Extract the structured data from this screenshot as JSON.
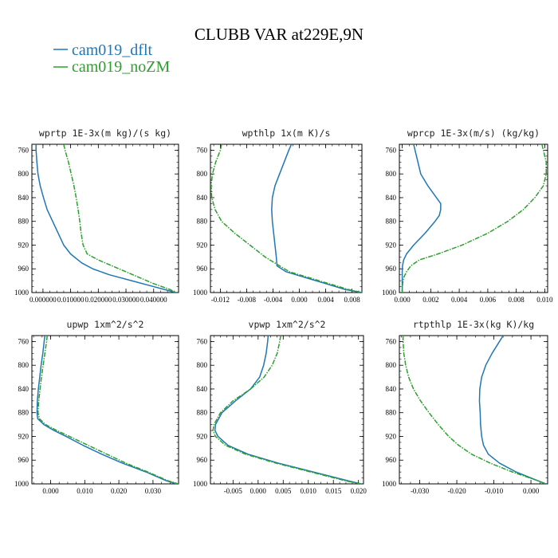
{
  "figure": {
    "title": "CLUBB VAR at229E,9N",
    "legend": [
      {
        "name": "cam019_dflt",
        "color": "#1f77b4"
      },
      {
        "name": "cam019_noZM",
        "color": "#2ca02c"
      }
    ]
  },
  "chart_data": [
    {
      "type": "line",
      "title": "wprtp  1E-3x(m kg)/(s kg)",
      "xlim": [
        -0.004,
        0.049
      ],
      "ylim": [
        1000,
        750
      ],
      "y_axis": "pressure_reversed",
      "xticks": [
        "0.000000",
        "0.010000",
        "0.020000",
        "0.030000",
        "0.040000"
      ],
      "xtick_values": [
        0,
        0.01,
        0.02,
        0.03,
        0.04
      ],
      "yticks": [
        760,
        800,
        840,
        880,
        920,
        960,
        1000
      ],
      "series": [
        {
          "name": "cam019_dflt",
          "color": "#1f77b4",
          "y": [
            750,
            760,
            780,
            800,
            820,
            840,
            860,
            880,
            900,
            920,
            935,
            950,
            960,
            970,
            980,
            990,
            995,
            1000
          ],
          "x": [
            -0.0025,
            -0.0025,
            -0.0022,
            -0.0018,
            -0.001,
            0.0002,
            0.0015,
            0.0035,
            0.0055,
            0.0075,
            0.01,
            0.014,
            0.018,
            0.024,
            0.032,
            0.04,
            0.044,
            0.048
          ]
        },
        {
          "name": "cam019_noZM",
          "color": "#2ca02c",
          "y": [
            750,
            760,
            780,
            800,
            820,
            840,
            860,
            880,
            900,
            920,
            935,
            945,
            955,
            965,
            975,
            985,
            990,
            995,
            1000
          ],
          "x": [
            0.0075,
            0.008,
            0.0092,
            0.0102,
            0.0112,
            0.012,
            0.0127,
            0.0133,
            0.0138,
            0.0145,
            0.016,
            0.02,
            0.025,
            0.03,
            0.035,
            0.04,
            0.043,
            0.046,
            0.048
          ]
        }
      ]
    },
    {
      "type": "line",
      "title": "wpthlp  1x(m K)/s",
      "xlim": [
        -0.0135,
        0.0095
      ],
      "ylim": [
        1000,
        750
      ],
      "y_axis": "pressure_reversed",
      "xticks": [
        "-0.012",
        "-0.008",
        "-0.004",
        "0.000",
        "0.004",
        "0.008"
      ],
      "xtick_values": [
        -0.012,
        -0.008,
        -0.004,
        0,
        0.004,
        0.008
      ],
      "yticks": [
        760,
        800,
        840,
        880,
        920,
        960,
        1000
      ],
      "series": [
        {
          "name": "cam019_dflt",
          "color": "#1f77b4",
          "y": [
            750,
            760,
            780,
            800,
            820,
            840,
            860,
            880,
            900,
            920,
            940,
            955,
            965,
            975,
            985,
            995,
            1000
          ],
          "x": [
            -0.0012,
            -0.0016,
            -0.0023,
            -0.003,
            -0.0037,
            -0.0041,
            -0.0042,
            -0.0041,
            -0.0039,
            -0.0037,
            -0.0035,
            -0.0034,
            -0.002,
            0.001,
            0.004,
            0.007,
            0.0095
          ]
        },
        {
          "name": "cam019_noZM",
          "color": "#2ca02c",
          "y": [
            750,
            760,
            780,
            800,
            820,
            840,
            860,
            880,
            900,
            920,
            940,
            955,
            965,
            975,
            985,
            995,
            1000
          ],
          "x": [
            -0.0118,
            -0.012,
            -0.0127,
            -0.0132,
            -0.0134,
            -0.0133,
            -0.0128,
            -0.0118,
            -0.0098,
            -0.0075,
            -0.0052,
            -0.003,
            -0.0015,
            0.0015,
            0.0045,
            0.0075,
            0.0095
          ]
        }
      ]
    },
    {
      "type": "line",
      "title": "wprcp  1E-3x(m/s) (kg/kg)",
      "xlim": [
        -0.0002,
        0.0102
      ],
      "ylim": [
        1000,
        750
      ],
      "y_axis": "pressure_reversed",
      "xticks": [
        "0.000",
        "0.002",
        "0.004",
        "0.006",
        "0.008",
        "0.010"
      ],
      "xtick_values": [
        0,
        0.002,
        0.004,
        0.006,
        0.008,
        0.01
      ],
      "yticks": [
        760,
        800,
        840,
        880,
        920,
        960,
        1000
      ],
      "series": [
        {
          "name": "cam019_dflt",
          "color": "#1f77b4",
          "y": [
            750,
            760,
            780,
            800,
            820,
            840,
            850,
            860,
            870,
            880,
            900,
            920,
            935,
            945,
            955,
            965,
            975,
            990,
            1000
          ],
          "x": [
            0.0008,
            0.0009,
            0.0011,
            0.0013,
            0.0018,
            0.0024,
            0.0027,
            0.0027,
            0.0026,
            0.0023,
            0.0016,
            0.0008,
            0.0003,
            0.0001,
            2e-05,
            0,
            0,
            0,
            0
          ]
        },
        {
          "name": "cam019_noZM",
          "color": "#2ca02c",
          "y": [
            750,
            760,
            780,
            800,
            820,
            840,
            860,
            880,
            900,
            920,
            935,
            945,
            955,
            965,
            975,
            985,
            995,
            1000
          ],
          "x": [
            0.0098,
            0.0099,
            0.0101,
            0.0101,
            0.0099,
            0.0093,
            0.0085,
            0.0074,
            0.006,
            0.0042,
            0.0025,
            0.0012,
            0.0006,
            0.0003,
            0.0001,
            3e-05,
            0,
            0
          ]
        }
      ]
    },
    {
      "type": "line",
      "title": "upwp  1xm^2/s^2",
      "xlim": [
        -0.0055,
        0.0375
      ],
      "ylim": [
        1000,
        750
      ],
      "y_axis": "pressure_reversed",
      "xticks": [
        "0.000",
        "0.010",
        "0.020",
        "0.030"
      ],
      "xtick_values": [
        0,
        0.01,
        0.02,
        0.03
      ],
      "yticks": [
        760,
        800,
        840,
        880,
        920,
        960,
        1000
      ],
      "series": [
        {
          "name": "cam019_dflt",
          "color": "#1f77b4",
          "y": [
            750,
            760,
            780,
            800,
            820,
            840,
            860,
            880,
            890,
            900,
            910,
            920,
            935,
            950,
            965,
            980,
            995,
            1000
          ],
          "x": [
            -0.0017,
            -0.0019,
            -0.0023,
            -0.0028,
            -0.0032,
            -0.0036,
            -0.0039,
            -0.004,
            -0.0038,
            -0.002,
            0.001,
            0.0045,
            0.0095,
            0.015,
            0.021,
            0.028,
            0.034,
            0.037
          ]
        },
        {
          "name": "cam019_noZM",
          "color": "#2ca02c",
          "y": [
            750,
            760,
            780,
            800,
            820,
            840,
            860,
            880,
            890,
            900,
            910,
            920,
            935,
            950,
            965,
            980,
            995,
            1000
          ],
          "x": [
            -0.001,
            -0.0012,
            -0.0017,
            -0.0022,
            -0.0027,
            -0.0031,
            -0.0035,
            -0.0037,
            -0.0033,
            -0.0015,
            0.0018,
            0.0055,
            0.011,
            0.0165,
            0.022,
            0.0285,
            0.0345,
            0.0375
          ]
        }
      ]
    },
    {
      "type": "line",
      "title": "vpwp  1xm^2/s^2",
      "xlim": [
        -0.0095,
        0.021
      ],
      "ylim": [
        1000,
        750
      ],
      "y_axis": "pressure_reversed",
      "xticks": [
        "-0.005",
        "0.000",
        "0.005",
        "0.010",
        "0.015",
        "0.020"
      ],
      "xtick_values": [
        -0.005,
        0,
        0.005,
        0.01,
        0.015,
        0.02
      ],
      "yticks": [
        760,
        800,
        840,
        880,
        920,
        960,
        1000
      ],
      "series": [
        {
          "name": "cam019_dflt",
          "color": "#1f77b4",
          "y": [
            750,
            760,
            780,
            800,
            820,
            840,
            860,
            880,
            900,
            910,
            920,
            935,
            950,
            965,
            980,
            995,
            1000
          ],
          "x": [
            0.002,
            0.0019,
            0.0016,
            0.0011,
            0.0003,
            -0.0015,
            -0.0045,
            -0.0072,
            -0.0085,
            -0.0086,
            -0.008,
            -0.006,
            -0.002,
            0.004,
            0.011,
            0.018,
            0.0205
          ]
        },
        {
          "name": "cam019_noZM",
          "color": "#2ca02c",
          "y": [
            750,
            760,
            780,
            800,
            820,
            840,
            860,
            880,
            900,
            910,
            920,
            935,
            950,
            965,
            980,
            995,
            1000
          ],
          "x": [
            0.0045,
            0.0043,
            0.0038,
            0.0028,
            0.0012,
            -0.0015,
            -0.005,
            -0.0075,
            -0.0088,
            -0.009,
            -0.0085,
            -0.0065,
            -0.0025,
            0.0035,
            0.0105,
            0.0175,
            0.0205
          ]
        }
      ]
    },
    {
      "type": "line",
      "title": "rtpthlp  1E-3x(kg K)/kg",
      "xlim": [
        -0.0355,
        0.0045
      ],
      "ylim": [
        1000,
        750
      ],
      "y_axis": "pressure_reversed",
      "xticks": [
        "-0.030",
        "-0.020",
        "-0.010",
        "0.000"
      ],
      "xtick_values": [
        -0.03,
        -0.02,
        -0.01,
        0
      ],
      "yticks": [
        760,
        800,
        840,
        880,
        920,
        960,
        1000
      ],
      "series": [
        {
          "name": "cam019_dflt",
          "color": "#1f77b4",
          "y": [
            750,
            760,
            780,
            800,
            820,
            840,
            860,
            880,
            900,
            920,
            935,
            950,
            965,
            980,
            995,
            1000
          ],
          "x": [
            -0.0075,
            -0.0085,
            -0.0105,
            -0.0122,
            -0.0133,
            -0.0138,
            -0.0139,
            -0.0137,
            -0.0136,
            -0.0133,
            -0.0128,
            -0.0115,
            -0.0085,
            -0.004,
            0.002,
            0.004
          ]
        },
        {
          "name": "cam019_noZM",
          "color": "#2ca02c",
          "y": [
            750,
            760,
            780,
            800,
            820,
            840,
            860,
            880,
            900,
            920,
            935,
            950,
            965,
            980,
            995,
            1000
          ],
          "x": [
            -0.0345,
            -0.0345,
            -0.0343,
            -0.0338,
            -0.033,
            -0.0317,
            -0.0298,
            -0.0275,
            -0.025,
            -0.0222,
            -0.0195,
            -0.016,
            -0.011,
            -0.005,
            0.002,
            0.004
          ]
        }
      ]
    }
  ]
}
